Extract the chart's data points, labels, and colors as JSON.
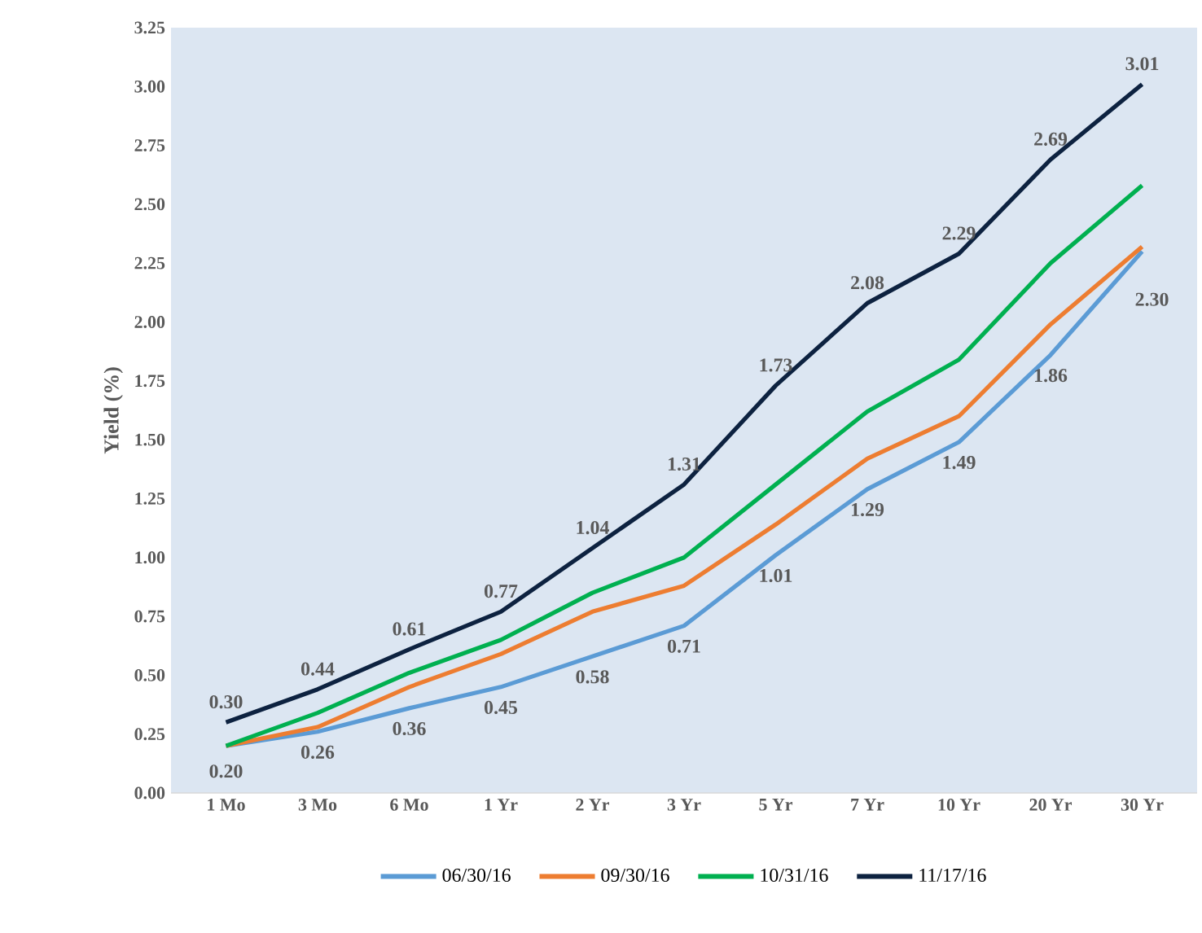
{
  "chart_data": {
    "type": "line",
    "ylabel": "Yield (%)",
    "categories": [
      "1 Mo",
      "3 Mo",
      "6 Mo",
      "1 Yr",
      "2 Yr",
      "3 Yr",
      "5 Yr",
      "7 Yr",
      "10 Yr",
      "20 Yr",
      "30 Yr"
    ],
    "series": [
      {
        "name": "06/30/16",
        "color": "#5b9bd5",
        "values": [
          0.2,
          0.26,
          0.36,
          0.45,
          0.58,
          0.71,
          1.01,
          1.29,
          1.49,
          1.86,
          2.3
        ],
        "value_labels": [
          "0.20",
          "0.26",
          "0.36",
          "0.45",
          "0.58",
          "0.71",
          "1.01",
          "1.29",
          "1.49",
          "1.86",
          "2.30"
        ]
      },
      {
        "name": "09/30/16",
        "color": "#ed7d31",
        "values": [
          0.2,
          0.28,
          0.45,
          0.59,
          0.77,
          0.88,
          1.14,
          1.42,
          1.6,
          1.99,
          2.32
        ]
      },
      {
        "name": "10/31/16",
        "color": "#00b050",
        "values": [
          0.2,
          0.34,
          0.51,
          0.65,
          0.85,
          1.0,
          1.31,
          1.62,
          1.84,
          2.25,
          2.58
        ]
      },
      {
        "name": "11/17/16",
        "color": "#0d2240",
        "values": [
          0.3,
          0.44,
          0.61,
          0.77,
          1.04,
          1.31,
          1.73,
          2.08,
          2.29,
          2.69,
          3.01
        ],
        "value_labels": [
          "0.30",
          "0.44",
          "0.61",
          "0.77",
          "1.04",
          "1.31",
          "1.73",
          "2.08",
          "2.29",
          "2.69",
          "3.01"
        ]
      }
    ],
    "ylim": [
      0,
      3.25
    ],
    "yticks": [
      {
        "value": 0,
        "label": "0.00"
      },
      {
        "value": 0.25,
        "label": "0.25"
      },
      {
        "value": 0.5,
        "label": "0.50"
      },
      {
        "value": 0.75,
        "label": "0.75"
      },
      {
        "value": 1,
        "label": "1.00"
      },
      {
        "value": 1.25,
        "label": "1.25"
      },
      {
        "value": 1.5,
        "label": "1.50"
      },
      {
        "value": 1.75,
        "label": "1.75"
      },
      {
        "value": 2,
        "label": "2.00"
      },
      {
        "value": 2.25,
        "label": "2.25"
      },
      {
        "value": 2.5,
        "label": "2.50"
      },
      {
        "value": 2.75,
        "label": "2.75"
      },
      {
        "value": 3,
        "label": "3.00"
      },
      {
        "value": 3.25,
        "label": "3.25"
      }
    ],
    "grid": false,
    "legend": "bottom",
    "marker": "none",
    "line_style": "solid"
  }
}
